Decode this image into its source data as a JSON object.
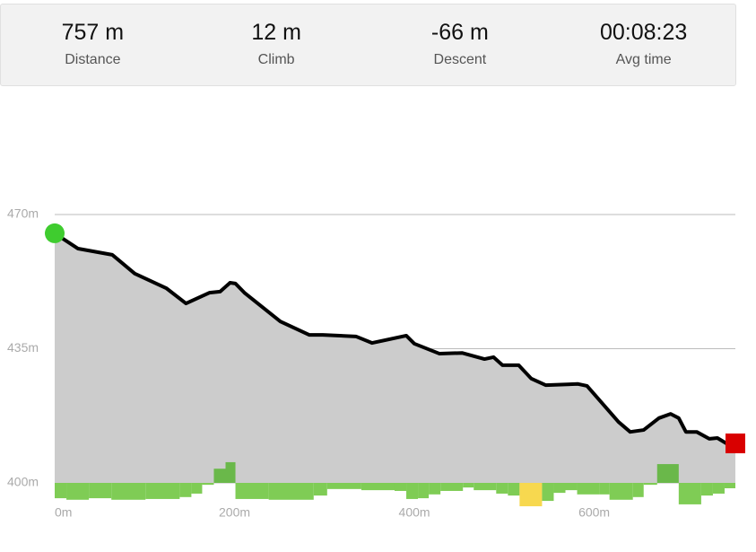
{
  "stats": [
    {
      "value": "757 m",
      "label": "Distance"
    },
    {
      "value": "12 m",
      "label": "Climb"
    },
    {
      "value": "-66 m",
      "label": "Descent"
    },
    {
      "value": "00:08:23",
      "label": "Avg time"
    }
  ],
  "chart_data": {
    "type": "area",
    "color": "#cccccc",
    "line_color": "#000000",
    "x": [
      0,
      26,
      64,
      89,
      124,
      146,
      172,
      184,
      195,
      201,
      211,
      251,
      283,
      298,
      335,
      353,
      391,
      400,
      428,
      453,
      478,
      488,
      498,
      516,
      530,
      546,
      582,
      592,
      627,
      640,
      655,
      672,
      685,
      694,
      702,
      714,
      728,
      737,
      747,
      757
    ],
    "values": [
      465.1,
      461.1,
      459.5,
      454.6,
      450.8,
      446.8,
      449.6,
      449.9,
      452.2,
      452,
      449.6,
      442.1,
      438.6,
      438.6,
      438.2,
      436.5,
      438.4,
      436.3,
      433.7,
      433.9,
      432.3,
      432.8,
      430.7,
      430.7,
      427.2,
      425.5,
      425.8,
      425.3,
      415.9,
      413.3,
      413.8,
      416.9,
      418,
      416.9,
      413.3,
      413.3,
      411.5,
      411.7,
      410.3,
      410.3
    ],
    "xlim": [
      0,
      757
    ],
    "ylim": [
      400,
      470
    ],
    "xticks": [
      {
        "value": 0,
        "label": "0m"
      },
      {
        "value": 200,
        "label": "200m"
      },
      {
        "value": 400,
        "label": "400m"
      },
      {
        "value": 600,
        "label": "600m"
      }
    ],
    "yticks": [
      {
        "value": 400,
        "label": "400m"
      },
      {
        "value": 435,
        "label": "435m"
      },
      {
        "value": 470,
        "label": "470m"
      }
    ],
    "grid": true,
    "bars": {
      "bins": [
        0,
        13,
        38,
        63,
        101,
        139,
        152,
        164,
        177,
        190,
        201,
        238,
        288,
        303,
        341,
        378,
        391,
        404,
        416,
        429,
        454,
        466,
        491,
        504,
        517,
        542,
        555,
        568,
        581,
        606,
        617,
        643,
        655,
        670,
        694,
        719,
        732,
        745,
        757
      ],
      "values": [
        396.0,
        395.6,
        396.0,
        395.6,
        395.8,
        396.3,
        397.2,
        399.5,
        403.7,
        405.4,
        395.8,
        395.6,
        396.7,
        398.4,
        398.1,
        397.9,
        395.8,
        396.0,
        397.0,
        397.9,
        398.8,
        398.1,
        397.2,
        396.7,
        393.9,
        395.3,
        397.4,
        398.1,
        397.0,
        397.0,
        395.6,
        396.3,
        399.5,
        404.9,
        394.4,
        396.7,
        397.2,
        398.6
      ],
      "colors": [
        "#7fcc55",
        "#7fcc55",
        "#7fcc55",
        "#7fcc55",
        "#7fcc55",
        "#7fcc55",
        "#7fcc55",
        "#7fcc55",
        "#6ab84a",
        "#6ab84a",
        "#7fcc55",
        "#7fcc55",
        "#7fcc55",
        "#7fcc55",
        "#7fcc55",
        "#7fcc55",
        "#7fcc55",
        "#7fcc55",
        "#7fcc55",
        "#7fcc55",
        "#7fcc55",
        "#7fcc55",
        "#7fcc55",
        "#7fcc55",
        "#f7d84f",
        "#7fcc55",
        "#7fcc55",
        "#7fcc55",
        "#7fcc55",
        "#7fcc55",
        "#7fcc55",
        "#7fcc55",
        "#7fcc55",
        "#6ab84a",
        "#7fcc55",
        "#7fcc55",
        "#7fcc55",
        "#7fcc55"
      ]
    }
  }
}
